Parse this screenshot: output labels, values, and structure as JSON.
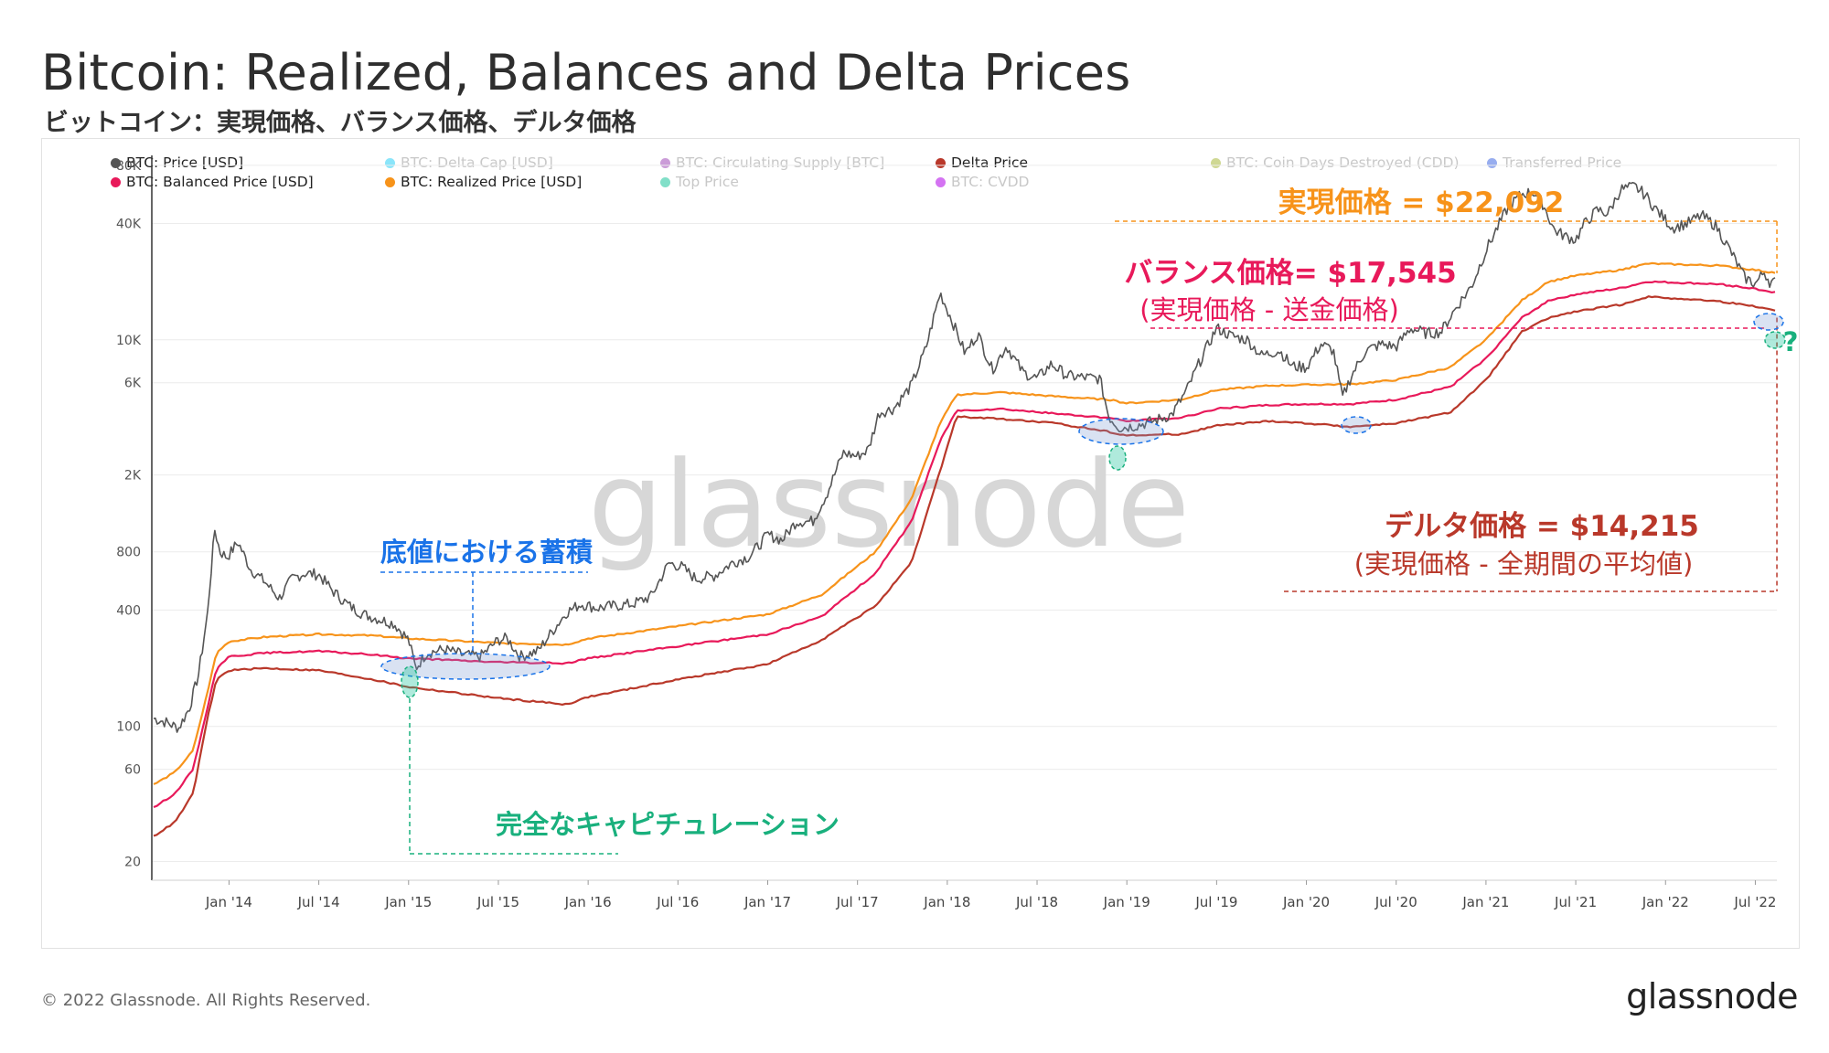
{
  "title": "Bitcoin: Realized, Balances and Delta Prices",
  "subtitle": "ビットコイン：実現価格、バランス価格、デルタ価格",
  "footer": "© 2022 Glassnode. All Rights Reserved.",
  "brand": "glassnode",
  "legend": [
    {
      "label": "BTC: Price [USD]",
      "color": "#555555",
      "active": true
    },
    {
      "label": "BTC: Delta Cap [USD]",
      "color": "#2ad0f5",
      "active": false
    },
    {
      "label": "BTC: Circulating Supply [BTC]",
      "color": "#a14bb8",
      "active": false
    },
    {
      "label": "Delta Price",
      "color": "#b9382a",
      "active": true
    },
    {
      "label": "BTC: Coin Days Destroyed (CDD)",
      "color": "#a8b83a",
      "active": false
    },
    {
      "label": "Transferred Price",
      "color": "#4169e1",
      "active": false
    },
    {
      "label": "BTC: Balanced Price [USD]",
      "color": "#e8195a",
      "active": true
    },
    {
      "label": "BTC: Realized Price [USD]",
      "color": "#f7931a",
      "active": true
    },
    {
      "label": "Top Price",
      "color": "#19c49a",
      "active": false
    },
    {
      "label": "BTC: CVDD",
      "color": "#b100e8",
      "active": false
    }
  ],
  "annotations": {
    "realized": "実現価格 = $22,092",
    "balanced": "バランス価格= $17,545",
    "balanced_sub": "(実現価格 - 送金価格)",
    "delta": "デルタ価格 = $14,215",
    "delta_sub": "(実現価格 - 全期間の平均値)",
    "accumulation": "底値における蓄積",
    "capitulation": "完全なキャピチュレーション",
    "question": "?"
  },
  "watermark": "glassnode",
  "colors": {
    "price": "#555555",
    "realized": "#f7931a",
    "balanced": "#e8195a",
    "delta": "#b9382a",
    "accumulation": "#1a73e8",
    "capitulation": "#19b07d"
  },
  "chart_data": {
    "type": "line",
    "title": "Bitcoin: Realized, Balances and Delta Prices",
    "xlabel": "",
    "ylabel": "",
    "yscale": "log",
    "ylim": [
      16,
      90000
    ],
    "y_ticks": [
      20,
      60,
      100,
      400,
      800,
      2000,
      6000,
      10000,
      40000,
      80000
    ],
    "y_tick_labels": [
      "20",
      "60",
      "100",
      "400",
      "800",
      "2K",
      "6K",
      "10K",
      "40K",
      "80K"
    ],
    "x_range": [
      2013.57,
      2022.62
    ],
    "x_ticks": [
      {
        "t": 2014.0,
        "label": "Jan '14"
      },
      {
        "t": 2014.5,
        "label": "Jul '14"
      },
      {
        "t": 2015.0,
        "label": "Jan '15"
      },
      {
        "t": 2015.5,
        "label": "Jul '15"
      },
      {
        "t": 2016.0,
        "label": "Jan '16"
      },
      {
        "t": 2016.5,
        "label": "Jul '16"
      },
      {
        "t": 2017.0,
        "label": "Jan '17"
      },
      {
        "t": 2017.5,
        "label": "Jul '17"
      },
      {
        "t": 2018.0,
        "label": "Jan '18"
      },
      {
        "t": 2018.5,
        "label": "Jul '18"
      },
      {
        "t": 2019.0,
        "label": "Jan '19"
      },
      {
        "t": 2019.5,
        "label": "Jul '19"
      },
      {
        "t": 2020.0,
        "label": "Jan '20"
      },
      {
        "t": 2020.5,
        "label": "Jul '20"
      },
      {
        "t": 2021.0,
        "label": "Jan '21"
      },
      {
        "t": 2021.5,
        "label": "Jul '21"
      },
      {
        "t": 2022.0,
        "label": "Jan '22"
      },
      {
        "t": 2022.5,
        "label": "Jul '22"
      }
    ],
    "series": [
      {
        "name": "BTC: Price [USD]",
        "color": "#555555",
        "points": [
          [
            2013.58,
            110
          ],
          [
            2013.65,
            105
          ],
          [
            2013.72,
            98
          ],
          [
            2013.78,
            125
          ],
          [
            2013.83,
            185
          ],
          [
            2013.88,
            380
          ],
          [
            2013.92,
            1050
          ],
          [
            2013.95,
            800
          ],
          [
            2013.99,
            750
          ],
          [
            2014.05,
            900
          ],
          [
            2014.12,
            650
          ],
          [
            2014.2,
            560
          ],
          [
            2014.28,
            460
          ],
          [
            2014.35,
            580
          ],
          [
            2014.42,
            620
          ],
          [
            2014.5,
            610
          ],
          [
            2014.58,
            500
          ],
          [
            2014.67,
            420
          ],
          [
            2014.75,
            380
          ],
          [
            2014.83,
            360
          ],
          [
            2014.92,
            340
          ],
          [
            2015.0,
            280
          ],
          [
            2015.04,
            200
          ],
          [
            2015.1,
            240
          ],
          [
            2015.2,
            250
          ],
          [
            2015.3,
            235
          ],
          [
            2015.4,
            230
          ],
          [
            2015.5,
            280
          ],
          [
            2015.55,
            285
          ],
          [
            2015.62,
            230
          ],
          [
            2015.72,
            245
          ],
          [
            2015.8,
            310
          ],
          [
            2015.88,
            390
          ],
          [
            2015.96,
            430
          ],
          [
            2016.05,
            410
          ],
          [
            2016.15,
            420
          ],
          [
            2016.25,
            430
          ],
          [
            2016.35,
            470
          ],
          [
            2016.45,
            700
          ],
          [
            2016.52,
            670
          ],
          [
            2016.6,
            580
          ],
          [
            2016.7,
            600
          ],
          [
            2016.8,
            700
          ],
          [
            2016.9,
            760
          ],
          [
            2017.0,
            980
          ],
          [
            2017.08,
            920
          ],
          [
            2017.16,
            1150
          ],
          [
            2017.25,
            1150
          ],
          [
            2017.33,
            1600
          ],
          [
            2017.42,
            2600
          ],
          [
            2017.5,
            2500
          ],
          [
            2017.56,
            2700
          ],
          [
            2017.62,
            4200
          ],
          [
            2017.7,
            4400
          ],
          [
            2017.8,
            5800
          ],
          [
            2017.88,
            9000
          ],
          [
            2017.96,
            17500
          ],
          [
            2018.02,
            13000
          ],
          [
            2018.1,
            8500
          ],
          [
            2018.17,
            10800
          ],
          [
            2018.25,
            7000
          ],
          [
            2018.33,
            9300
          ],
          [
            2018.42,
            6800
          ],
          [
            2018.5,
            6300
          ],
          [
            2018.58,
            7500
          ],
          [
            2018.67,
            6500
          ],
          [
            2018.75,
            6400
          ],
          [
            2018.85,
            6300
          ],
          [
            2018.9,
            4000
          ],
          [
            2018.96,
            3500
          ],
          [
            2019.05,
            3600
          ],
          [
            2019.15,
            3800
          ],
          [
            2019.25,
            4100
          ],
          [
            2019.33,
            5400
          ],
          [
            2019.42,
            8200
          ],
          [
            2019.5,
            11500
          ],
          [
            2019.58,
            10500
          ],
          [
            2019.67,
            10000
          ],
          [
            2019.75,
            8300
          ],
          [
            2019.85,
            8800
          ],
          [
            2019.92,
            7300
          ],
          [
            2020.0,
            7200
          ],
          [
            2020.08,
            9500
          ],
          [
            2020.15,
            8800
          ],
          [
            2020.2,
            5000
          ],
          [
            2020.25,
            6500
          ],
          [
            2020.33,
            8800
          ],
          [
            2020.42,
            9500
          ],
          [
            2020.5,
            9200
          ],
          [
            2020.58,
            11500
          ],
          [
            2020.67,
            10800
          ],
          [
            2020.75,
            11000
          ],
          [
            2020.83,
            14500
          ],
          [
            2020.92,
            19000
          ],
          [
            2021.0,
            29000
          ],
          [
            2021.05,
            36000
          ],
          [
            2021.12,
            48000
          ],
          [
            2021.2,
            57000
          ],
          [
            2021.27,
            58000
          ],
          [
            2021.32,
            50000
          ],
          [
            2021.38,
            37000
          ],
          [
            2021.45,
            34000
          ],
          [
            2021.5,
            33000
          ],
          [
            2021.55,
            40000
          ],
          [
            2021.62,
            47000
          ],
          [
            2021.68,
            45000
          ],
          [
            2021.75,
            60000
          ],
          [
            2021.83,
            62000
          ],
          [
            2021.88,
            57000
          ],
          [
            2021.95,
            47000
          ],
          [
            2022.04,
            38000
          ],
          [
            2022.12,
            40000
          ],
          [
            2022.2,
            44000
          ],
          [
            2022.28,
            39000
          ],
          [
            2022.36,
            29000
          ],
          [
            2022.44,
            21000
          ],
          [
            2022.5,
            19500
          ],
          [
            2022.55,
            22500
          ],
          [
            2022.58,
            20000
          ],
          [
            2022.61,
            19800
          ]
        ]
      },
      {
        "name": "BTC: Realized Price [USD]",
        "color": "#f7931a",
        "points": [
          [
            2013.58,
            50
          ],
          [
            2013.7,
            58
          ],
          [
            2013.8,
            75
          ],
          [
            2013.88,
            150
          ],
          [
            2013.93,
            240
          ],
          [
            2014.0,
            275
          ],
          [
            2014.2,
            290
          ],
          [
            2014.5,
            300
          ],
          [
            2014.8,
            295
          ],
          [
            2015.0,
            285
          ],
          [
            2015.5,
            270
          ],
          [
            2015.88,
            265
          ],
          [
            2016.0,
            285
          ],
          [
            2016.5,
            330
          ],
          [
            2017.0,
            380
          ],
          [
            2017.3,
            480
          ],
          [
            2017.6,
            800
          ],
          [
            2017.8,
            1500
          ],
          [
            2017.96,
            3700
          ],
          [
            2018.05,
            5200
          ],
          [
            2018.3,
            5350
          ],
          [
            2018.6,
            5100
          ],
          [
            2018.9,
            4900
          ],
          [
            2019.0,
            4700
          ],
          [
            2019.3,
            4900
          ],
          [
            2019.5,
            5500
          ],
          [
            2019.8,
            5800
          ],
          [
            2020.0,
            5850
          ],
          [
            2020.25,
            5900
          ],
          [
            2020.5,
            6200
          ],
          [
            2020.8,
            7200
          ],
          [
            2021.0,
            10000
          ],
          [
            2021.2,
            16000
          ],
          [
            2021.35,
            20000
          ],
          [
            2021.5,
            21500
          ],
          [
            2021.75,
            23000
          ],
          [
            2021.9,
            24800
          ],
          [
            2022.1,
            24500
          ],
          [
            2022.3,
            24200
          ],
          [
            2022.5,
            23000
          ],
          [
            2022.61,
            22092
          ]
        ]
      },
      {
        "name": "BTC: Balanced Price [USD]",
        "color": "#e8195a",
        "points": [
          [
            2013.58,
            38
          ],
          [
            2013.7,
            45
          ],
          [
            2013.8,
            60
          ],
          [
            2013.88,
            125
          ],
          [
            2013.93,
            200
          ],
          [
            2014.0,
            230
          ],
          [
            2014.2,
            240
          ],
          [
            2014.5,
            245
          ],
          [
            2014.8,
            235
          ],
          [
            2015.0,
            225
          ],
          [
            2015.5,
            215
          ],
          [
            2015.88,
            212
          ],
          [
            2016.0,
            225
          ],
          [
            2016.5,
            260
          ],
          [
            2017.0,
            300
          ],
          [
            2017.3,
            370
          ],
          [
            2017.6,
            620
          ],
          [
            2017.8,
            1150
          ],
          [
            2017.96,
            3000
          ],
          [
            2018.05,
            4300
          ],
          [
            2018.3,
            4400
          ],
          [
            2018.6,
            4150
          ],
          [
            2018.9,
            3950
          ],
          [
            2019.0,
            3800
          ],
          [
            2019.3,
            3950
          ],
          [
            2019.5,
            4400
          ],
          [
            2019.8,
            4600
          ],
          [
            2020.0,
            4650
          ],
          [
            2020.25,
            4650
          ],
          [
            2020.5,
            4900
          ],
          [
            2020.8,
            5700
          ],
          [
            2021.0,
            8000
          ],
          [
            2021.2,
            13000
          ],
          [
            2021.35,
            16000
          ],
          [
            2021.5,
            17200
          ],
          [
            2021.75,
            18500
          ],
          [
            2021.9,
            20000
          ],
          [
            2022.1,
            19700
          ],
          [
            2022.3,
            19400
          ],
          [
            2022.5,
            18400
          ],
          [
            2022.61,
            17545
          ]
        ]
      },
      {
        "name": "Delta Price",
        "color": "#b9382a",
        "points": [
          [
            2013.58,
            27
          ],
          [
            2013.7,
            32
          ],
          [
            2013.8,
            45
          ],
          [
            2013.88,
            110
          ],
          [
            2013.93,
            175
          ],
          [
            2014.0,
            195
          ],
          [
            2014.2,
            200
          ],
          [
            2014.5,
            195
          ],
          [
            2014.8,
            175
          ],
          [
            2015.0,
            160
          ],
          [
            2015.5,
            140
          ],
          [
            2015.88,
            130
          ],
          [
            2016.0,
            142
          ],
          [
            2016.5,
            175
          ],
          [
            2017.0,
            210
          ],
          [
            2017.3,
            280
          ],
          [
            2017.6,
            420
          ],
          [
            2017.8,
            700
          ],
          [
            2017.96,
            2100
          ],
          [
            2018.05,
            4000
          ],
          [
            2018.3,
            3900
          ],
          [
            2018.6,
            3700
          ],
          [
            2018.9,
            3350
          ],
          [
            2019.0,
            3200
          ],
          [
            2019.3,
            3250
          ],
          [
            2019.5,
            3600
          ],
          [
            2019.8,
            3800
          ],
          [
            2020.0,
            3700
          ],
          [
            2020.25,
            3550
          ],
          [
            2020.5,
            3700
          ],
          [
            2020.8,
            4200
          ],
          [
            2021.0,
            6200
          ],
          [
            2021.2,
            11000
          ],
          [
            2021.35,
            13000
          ],
          [
            2021.5,
            14000
          ],
          [
            2021.75,
            15200
          ],
          [
            2021.9,
            16700
          ],
          [
            2022.1,
            16300
          ],
          [
            2022.3,
            15800
          ],
          [
            2022.5,
            14900
          ],
          [
            2022.61,
            14215
          ]
        ]
      }
    ]
  }
}
